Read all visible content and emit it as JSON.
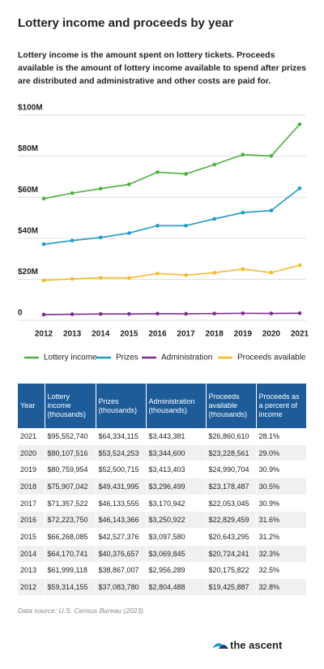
{
  "chart_data": {
    "type": "line",
    "title": "Lottery income and proceeds by year",
    "subtitle": "Lottery income is the amount spent on lottery tickets. Proceeds available is the amount of lottery income available to spend after prizes are distributed and administrative and other costs are paid for.",
    "categories": [
      "2012",
      "2013",
      "2014",
      "2015",
      "2016",
      "2017",
      "2018",
      "2019",
      "2020",
      "2021"
    ],
    "series": [
      {
        "name": "Lottery income",
        "color": "#4caf3f",
        "values": [
          59314155,
          61999118,
          64170741,
          66268085,
          72223750,
          71357522,
          75907042,
          80759954,
          80107516,
          95552740
        ]
      },
      {
        "name": "Prizes",
        "color": "#1f9bc6",
        "values": [
          37083780,
          38867007,
          40376657,
          42527376,
          46143366,
          46133555,
          49431995,
          52500715,
          53524253,
          64334115
        ]
      },
      {
        "name": "Administration",
        "color": "#7b2d8e",
        "values": [
          2804488,
          2956289,
          3069845,
          3097580,
          3250922,
          3170942,
          3296499,
          3413403,
          3344600,
          3443381
        ]
      },
      {
        "name": "Proceeds available",
        "color": "#f5b82e",
        "values": [
          19425887,
          20175822,
          20724241,
          20643295,
          22829459,
          22053045,
          23178487,
          24990704,
          23228561,
          26860610
        ]
      }
    ],
    "ylim": [
      0,
      100000000
    ],
    "yticks": [
      0,
      {
        "value": 20000000,
        "label": "$20M"
      },
      {
        "value": 40000000,
        "label": "$40M"
      },
      {
        "value": 60000000,
        "label": "$60M"
      },
      {
        "value": 80000000,
        "label": "$80M"
      },
      {
        "value": 100000000,
        "label": "$100M"
      }
    ],
    "grid": true,
    "legend": "bottom"
  },
  "table": {
    "columns": [
      "Year",
      "Lottery income (thousands)",
      "Prizes (thousands)",
      "Administration (thousands)",
      "Proceeds available (thousands)",
      "Proceeds as a percent of income"
    ],
    "rows": [
      [
        "2021",
        "$95,552,740",
        "$64,334,115",
        "$3,443,381",
        "$26,860,610",
        "28.1%"
      ],
      [
        "2020",
        "$80,107,516",
        "$53,524,253",
        "$3,344,600",
        "$23,228,561",
        "29.0%"
      ],
      [
        "2019",
        "$80,759,954",
        "$52,500,715",
        "$3,413,403",
        "$24,990,704",
        "30.9%"
      ],
      [
        "2018",
        "$75,907,042",
        "$49,431,995",
        "$3,296,499",
        "$23,178,487",
        "30.5%"
      ],
      [
        "2017",
        "$71,357,522",
        "$46,133,555",
        "$3,170,942",
        "$22,053,045",
        "30.9%"
      ],
      [
        "2016",
        "$72,223,750",
        "$46,143,366",
        "$3,250,922",
        "$22,829,459",
        "31.6%"
      ],
      [
        "2015",
        "$66,268,085",
        "$42,527,376",
        "$3,097,580",
        "$20,643,295",
        "31.2%"
      ],
      [
        "2014",
        "$64,170,741",
        "$40,376,657",
        "$3,069,845",
        "$20,724,241",
        "32.3%"
      ],
      [
        "2013",
        "$61,999,118",
        "$38,867,007",
        "$2,956,289",
        "$20,175,822",
        "32.5%"
      ],
      [
        "2012",
        "$59,314,155",
        "$37,083,780",
        "$2,804,488",
        "$19,425,887",
        "32.8%"
      ]
    ]
  },
  "source": "Data source: U.S. Census Bureau (2023).",
  "brand": "the ascent"
}
